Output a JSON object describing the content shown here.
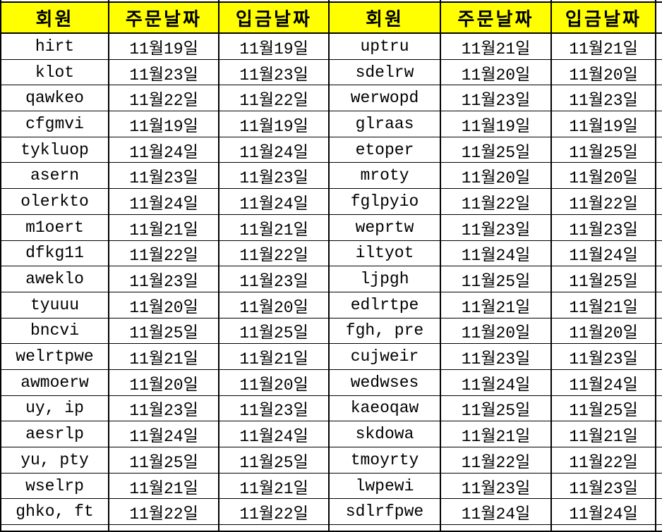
{
  "colors": {
    "header_bg": "#FFFF00",
    "border": "#000000",
    "text": "#000000",
    "cell_bg": "#FFFFFF"
  },
  "table": {
    "headers": [
      "회원",
      "주문날짜",
      "입금날짜",
      "회원",
      "주문날짜",
      "입금날짜"
    ],
    "rows": [
      [
        "hirt",
        "11월19일",
        "11월19일",
        "uptru",
        "11월21일",
        "11월21일"
      ],
      [
        "klot",
        "11월23일",
        "11월23일",
        "sdelrw",
        "11월20일",
        "11월20일"
      ],
      [
        "qawkeo",
        "11월22일",
        "11월22일",
        "werwopd",
        "11월23일",
        "11월23일"
      ],
      [
        "cfgmvi",
        "11월19일",
        "11월19일",
        "glraas",
        "11월19일",
        "11월19일"
      ],
      [
        "tykluop",
        "11월24일",
        "11월24일",
        "etoper",
        "11월25일",
        "11월25일"
      ],
      [
        "asern",
        "11월23일",
        "11월23일",
        "mroty",
        "11월20일",
        "11월20일"
      ],
      [
        "olerkto",
        "11월24일",
        "11월24일",
        "fglpyio",
        "11월22일",
        "11월22일"
      ],
      [
        "m1oert",
        "11월21일",
        "11월21일",
        "weprtw",
        "11월23일",
        "11월23일"
      ],
      [
        "dfkg11",
        "11월22일",
        "11월22일",
        "iltyot",
        "11월24일",
        "11월24일"
      ],
      [
        "aweklo",
        "11월23일",
        "11월23일",
        "ljpgh",
        "11월25일",
        "11월25일"
      ],
      [
        "tyuuu",
        "11월20일",
        "11월20일",
        "edlrtpe",
        "11월21일",
        "11월21일"
      ],
      [
        "bncvi",
        "11월25일",
        "11월25일",
        "fgh, pre",
        "11월20일",
        "11월20일"
      ],
      [
        "welrtpwe",
        "11월21일",
        "11월21일",
        "cujweir",
        "11월23일",
        "11월23일"
      ],
      [
        "awmoerw",
        "11월20일",
        "11월20일",
        "wedwses",
        "11월24일",
        "11월24일"
      ],
      [
        "uy, ip",
        "11월23일",
        "11월23일",
        "kaeoqaw",
        "11월25일",
        "11월25일"
      ],
      [
        "aesrlp",
        "11월24일",
        "11월24일",
        "skdowa",
        "11월21일",
        "11월21일"
      ],
      [
        "yu, pty",
        "11월25일",
        "11월25일",
        "tmoyrty",
        "11월22일",
        "11월22일"
      ],
      [
        "wselrp",
        "11월21일",
        "11월21일",
        "lwpewi",
        "11월23일",
        "11월23일"
      ],
      [
        "ghko, ft",
        "11월22일",
        "11월22일",
        "sdlrfpwe",
        "11월24일",
        "11월24일"
      ]
    ],
    "column_kinds": [
      "member-cell",
      "order-date-cell",
      "deposit-date-cell",
      "member-cell",
      "order-date-cell",
      "deposit-date-cell"
    ]
  }
}
